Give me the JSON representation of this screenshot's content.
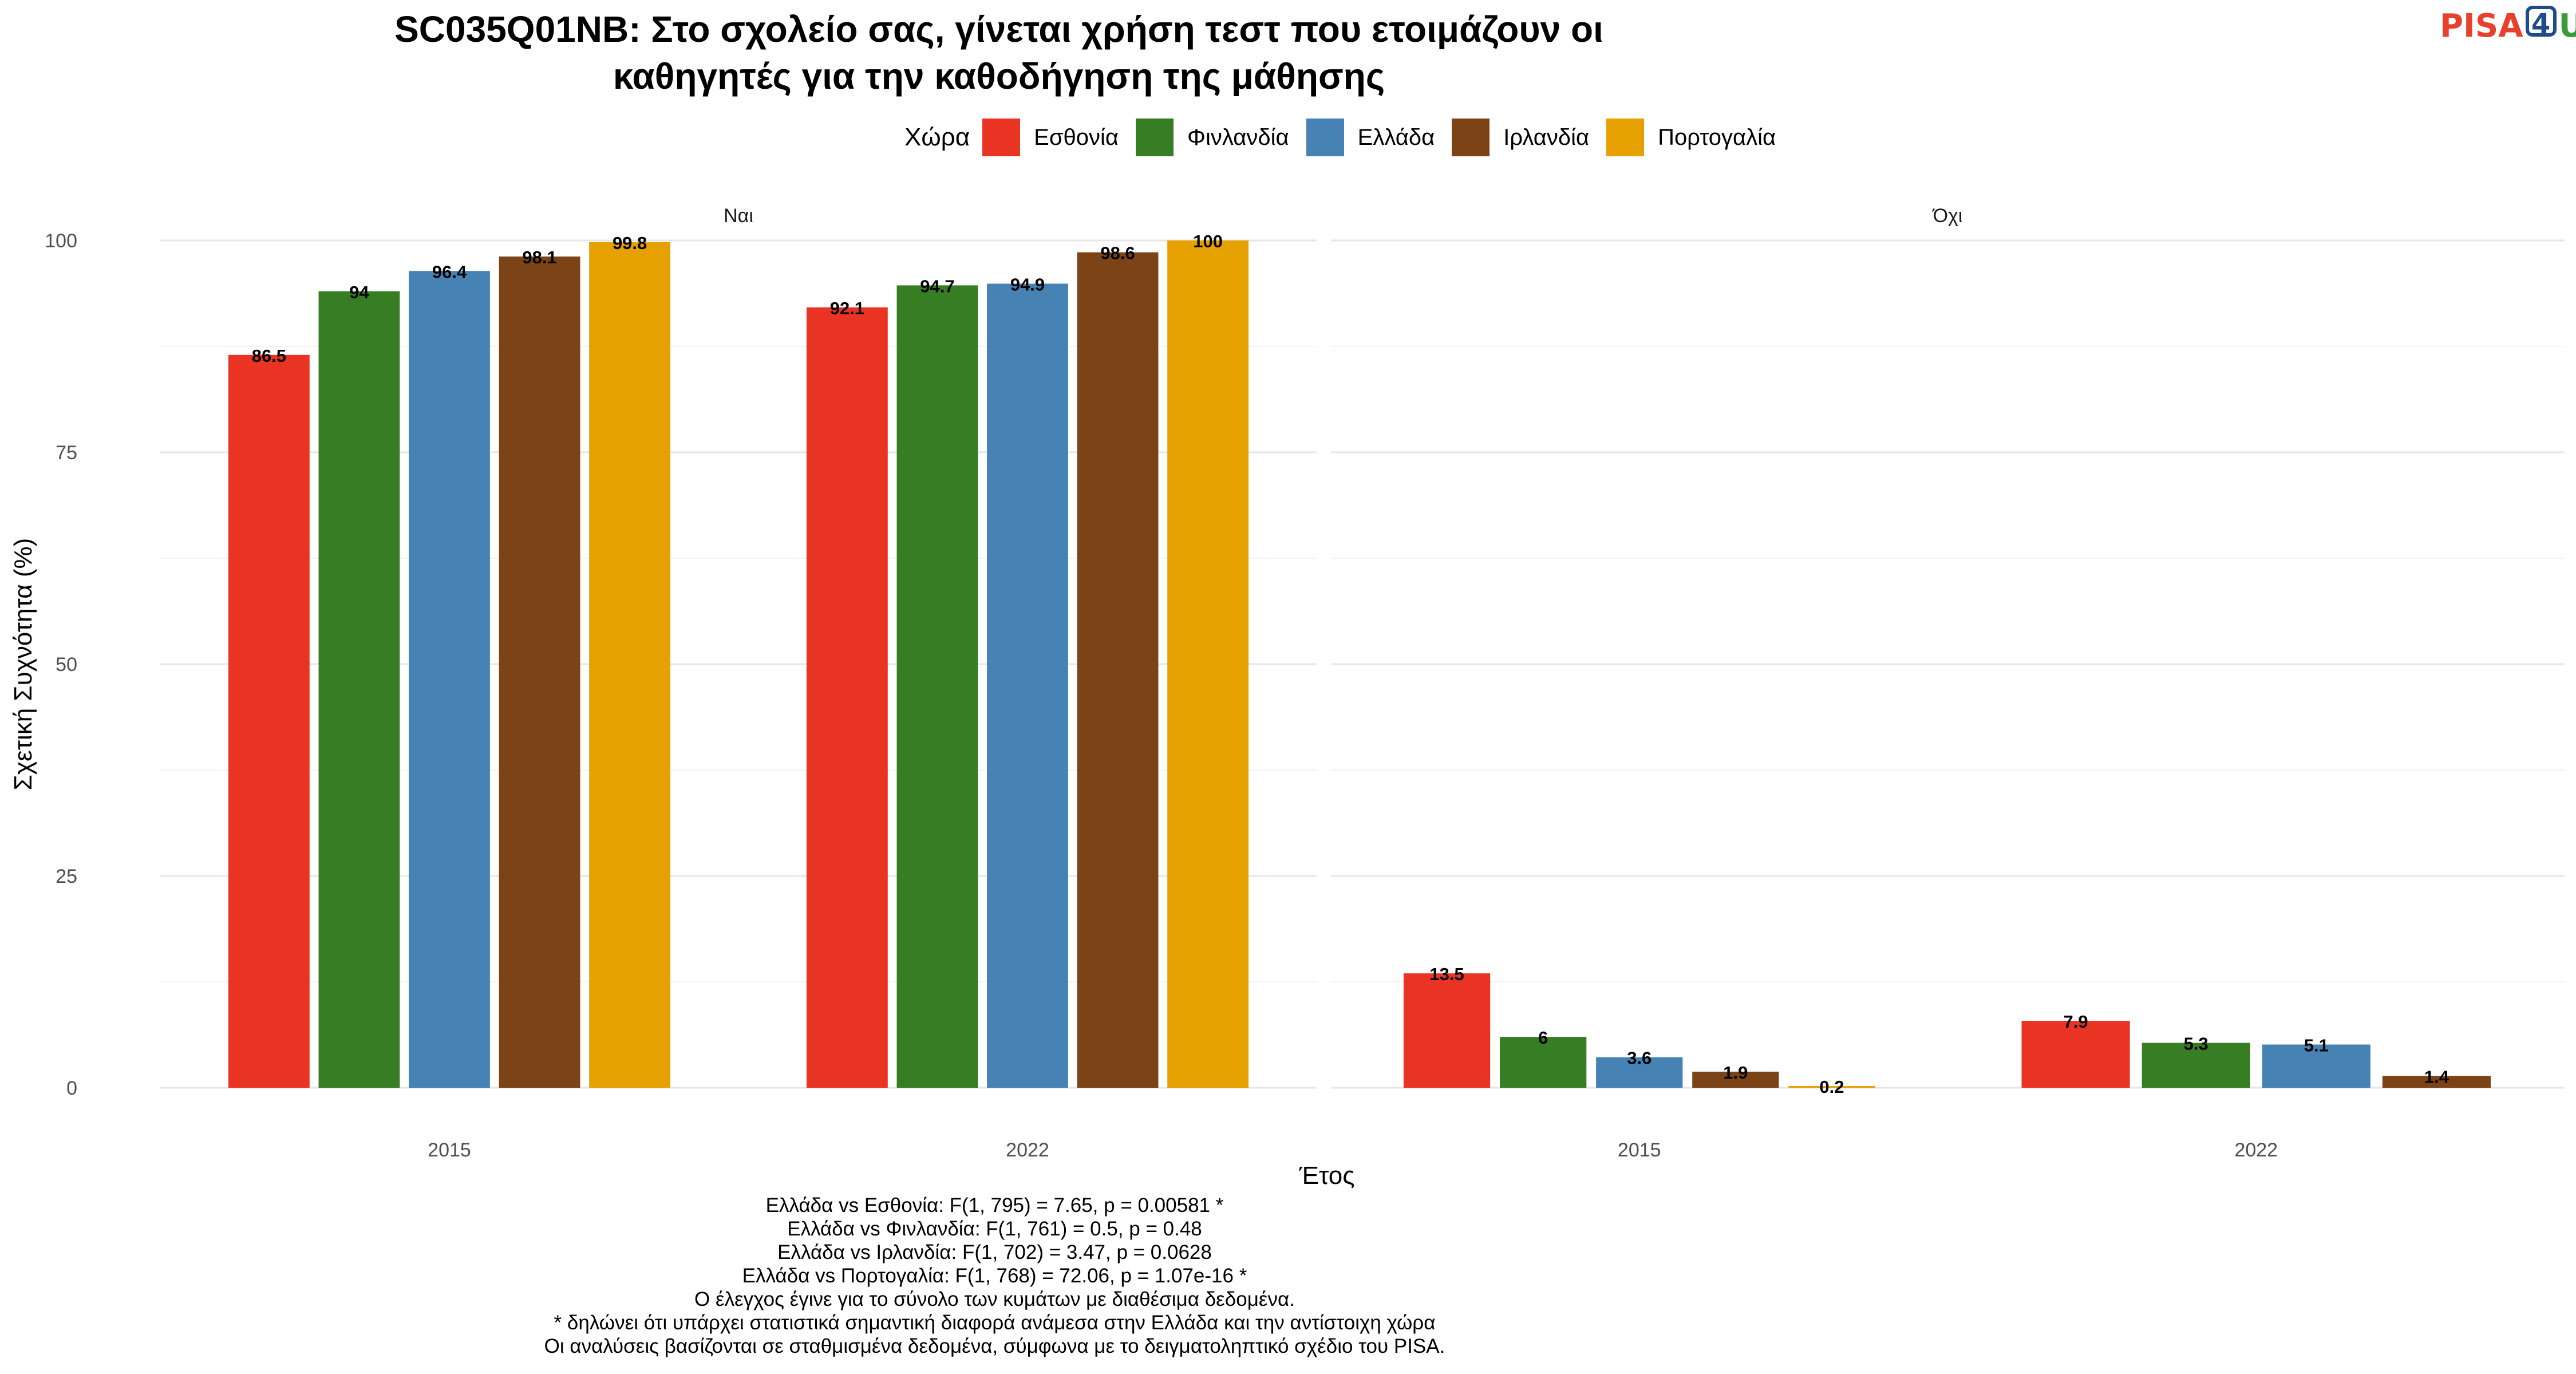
{
  "title": {
    "line1": "SC035Q01NB: Στο σχολείο σας, γίνεται χρήση τεστ που ετοιμάζουν οι",
    "line2": "καθηγητές για την καθοδήγηση της μάθησης"
  },
  "logo": {
    "pisa": "PISA",
    "four": "4",
    "u": "U"
  },
  "legend": {
    "title": "Χώρα"
  },
  "footer": {
    "lines": [
      "Ελλάδα vs Εσθονία: F(1, 795) = 7.65, p = 0.00581 *",
      "Ελλάδα vs Φινλανδία: F(1, 761) = 0.5, p = 0.48",
      "Ελλάδα vs Ιρλανδία: F(1, 702) = 3.47, p = 0.0628",
      "Ελλάδα vs Πορτογαλία: F(1, 768) = 72.06, p = 1.07e-16 *",
      "Ο έλεγχος έγινε για το σύνολο των κυμάτων με διαθέσιμα δεδομένα.",
      "* δηλώνει ότι υπάρχει στατιστικά σημαντική διαφορά ανάμεσα στην Ελλάδα και την αντίστοιχη χώρα",
      "Οι αναλύσεις βασίζονται σε σταθμισμένα δεδομένα, σύμφωνα με το δειγματοληπτικό σχέδιο του PISA."
    ]
  },
  "chart_data": {
    "type": "bar",
    "xlabel": "Έτος",
    "ylabel": "Σχετική Συχνότητα (%)",
    "ylim": [
      0,
      100
    ],
    "yticks": [
      0,
      25,
      50,
      75,
      100
    ],
    "categories": [
      "2015",
      "2022"
    ],
    "legend_position": "top",
    "grid": true,
    "series": [
      {
        "name": "Εσθονία",
        "color": "#e93323"
      },
      {
        "name": "Φινλανδία",
        "color": "#367d24"
      },
      {
        "name": "Ελλάδα",
        "color": "#4682b4"
      },
      {
        "name": "Ιρλανδία",
        "color": "#7b4316"
      },
      {
        "name": "Πορτογαλία",
        "color": "#e6a000"
      }
    ],
    "panels": [
      {
        "label": "Ναι",
        "values": [
          [
            86.5,
            94,
            96.4,
            98.1,
            99.8
          ],
          [
            92.1,
            94.7,
            94.9,
            98.6,
            100
          ]
        ]
      },
      {
        "label": "Όχι",
        "values": [
          [
            13.5,
            6,
            3.6,
            1.9,
            0.2
          ],
          [
            7.9,
            5.3,
            5.1,
            1.4,
            null
          ]
        ]
      }
    ]
  }
}
